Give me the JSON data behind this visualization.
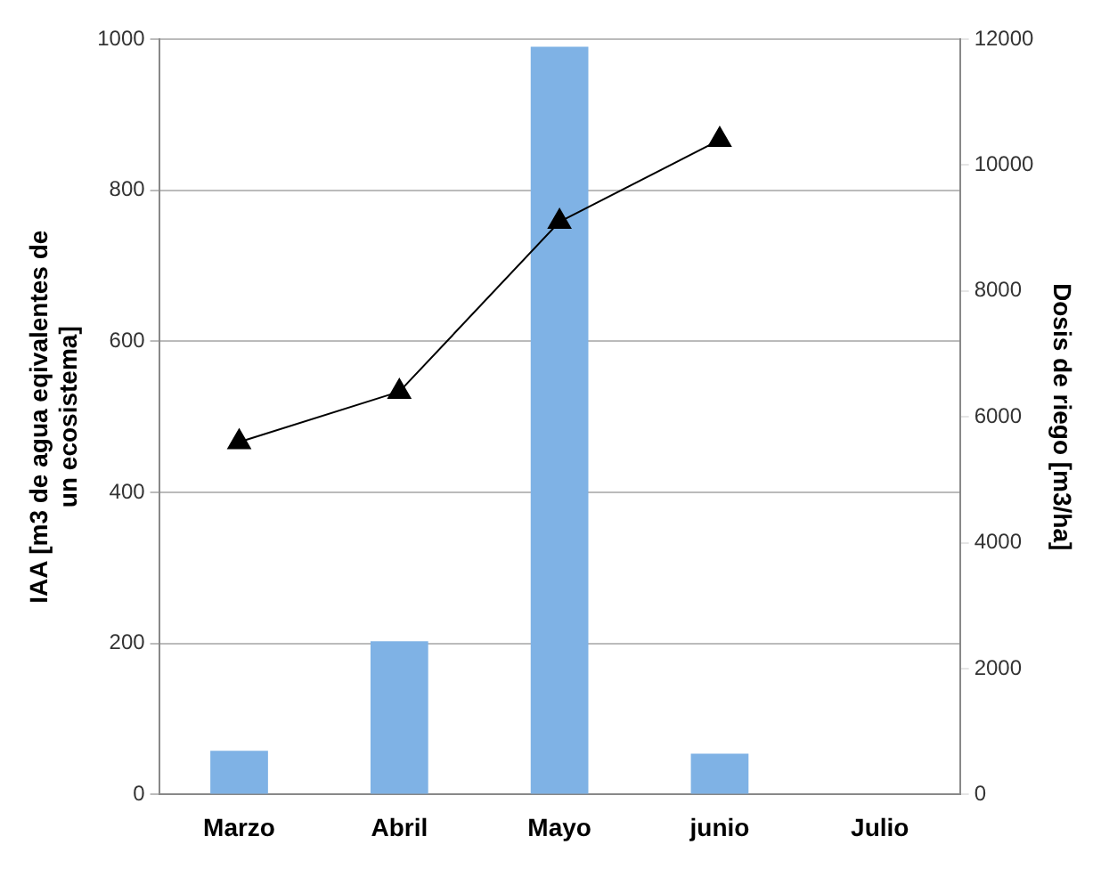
{
  "chart_data": {
    "type": "bar",
    "ylabel": "IAA [m3 de agua eqivalentes de un ecosistema]",
    "y2label": "Dosis de riego [m3/ha]",
    "categories": [
      "Marzo",
      "Abril",
      "Mayo",
      "junio",
      "Julio"
    ],
    "series": [
      {
        "color": "#7fb2e5",
        "values": [
          58,
          203,
          990,
          54,
          null
        ]
      },
      {
        "type": "line",
        "axis": "y2",
        "color": "#000000",
        "marker": "triangle",
        "values": [
          5600,
          6400,
          9100,
          10400,
          null
        ]
      }
    ],
    "ylim": [
      0,
      1000
    ],
    "yticks": [
      0,
      200,
      400,
      600,
      800,
      1000
    ],
    "y2lim": [
      0,
      12000
    ],
    "y2ticks": [
      0,
      2000,
      4000,
      6000,
      8000,
      10000,
      12000
    ],
    "grid": "y",
    "legend": false
  }
}
